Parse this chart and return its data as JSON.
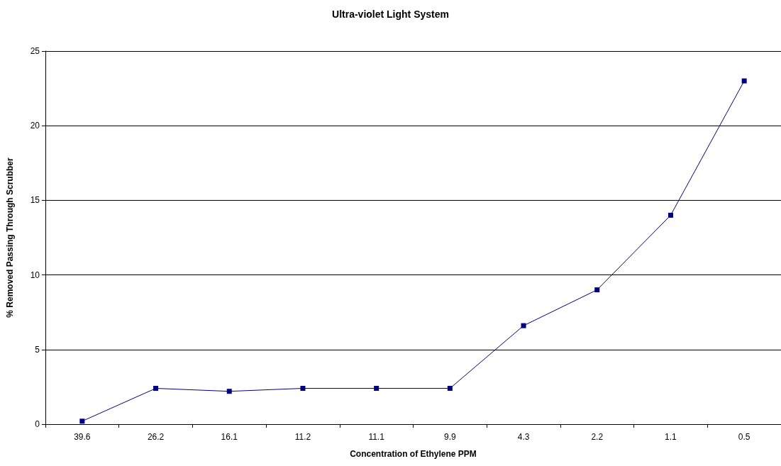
{
  "chart_data": {
    "type": "line",
    "title": "Ultra-violet Light System",
    "xlabel": "Concentration of Ethylene PPM",
    "ylabel": "% Removed Passing Through Scrubber",
    "categories": [
      "39.6",
      "26.2",
      "16.1",
      "11.2",
      "11.1",
      "9.9",
      "4.3",
      "2.2",
      "1.1",
      "0.5"
    ],
    "series": [
      {
        "color": "#000080",
        "values": [
          0.2,
          2.4,
          2.2,
          2.4,
          2.4,
          2.4,
          6.6,
          9,
          14,
          23
        ]
      }
    ],
    "ylim": [
      0,
      25
    ],
    "yticks": [
      0,
      5,
      10,
      15,
      20,
      25
    ],
    "grid": "y",
    "marker": "square",
    "line_style": "solid"
  }
}
